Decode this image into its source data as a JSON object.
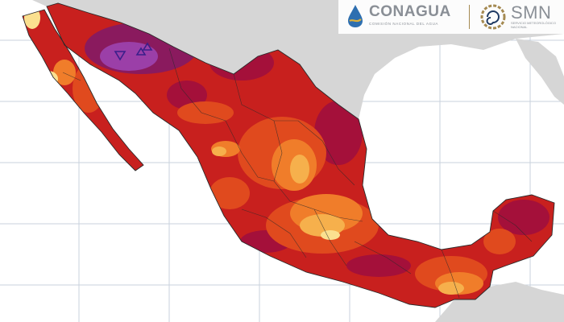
{
  "logos": {
    "conagua": {
      "name": "CONAGUA",
      "subtitle": "COMISIÓN NACIONAL DEL AGUA",
      "icon": "conagua-water-drop-icon",
      "colors": {
        "drop": "#2e6fb0",
        "wave": "#e0b23a",
        "text": "#8a8f96"
      }
    },
    "smn": {
      "name": "SMN",
      "subtitle": "SERVICIO METEOROLÓGICO NACIONAL",
      "icon": "smn-spiral-gear-icon",
      "colors": {
        "gear": "#a58a52",
        "spiral": "#1f3a63",
        "text": "#8a8f96"
      }
    }
  },
  "map": {
    "subject": "Mexico",
    "colors": {
      "ocean": "#ffffff",
      "neighbor_land": "#d6d6d6",
      "graticule": "#c9d2dc",
      "extreme_hot": "#8a1a5e",
      "very_hot": "#a4103a",
      "hot": "#c8201e",
      "warm": "#e04a1e",
      "mild": "#f07d2a",
      "cool": "#f6b04c",
      "coolest": "#fbe08f",
      "peak": "#9b3fa8",
      "border": "#2a2a2a"
    }
  }
}
